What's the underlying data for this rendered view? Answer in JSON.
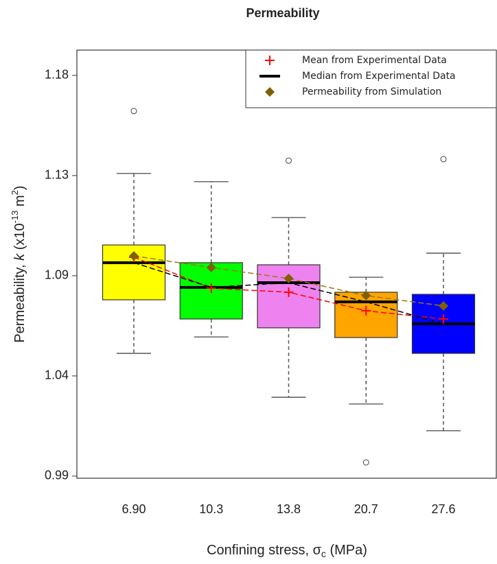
{
  "chart_data": {
    "type": "box",
    "title": "Permeability",
    "x_label": [
      "Confining stress, σ",
      "c",
      " (MPa)"
    ],
    "y_label": [
      "Permeability, ",
      "k",
      " (x10",
      "-13",
      " m",
      "2",
      ")"
    ],
    "categories": [
      "6.90",
      "10.3",
      "13.8",
      "20.7",
      "27.6"
    ],
    "box_colors": [
      "#ffff00",
      "#00ff00",
      "#ee82ee",
      "#ffa500",
      "#0000ff"
    ],
    "boxes": [
      {
        "whisker_low": 1.0482,
        "q1": 1.0736,
        "q3": 1.0996,
        "whisker_high": 1.1335,
        "outliers": [
          1.1631
        ]
      },
      {
        "whisker_low": 1.056,
        "q1": 1.0645,
        "q3": 1.0912,
        "whisker_high": 1.1296,
        "outliers": []
      },
      {
        "whisker_low": 1.0274,
        "q1": 1.0603,
        "q3": 1.0902,
        "whisker_high": 1.1126,
        "outliers": [
          1.1396
        ]
      },
      {
        "whisker_low": 1.0242,
        "q1": 1.0557,
        "q3": 1.0772,
        "whisker_high": 1.0843,
        "outliers": [
          0.9965
        ]
      },
      {
        "whisker_low": 1.0115,
        "q1": 1.0482,
        "q3": 1.0762,
        "whisker_high": 1.0957,
        "outliers": [
          1.1403
        ]
      }
    ],
    "series": [
      {
        "name": "Mean from Experimental Data",
        "marker": "plus",
        "color": "#ff0000",
        "values": [
          1.0938,
          1.0791,
          1.0772,
          1.0684,
          1.0645
        ]
      },
      {
        "name": "Median from Experimental Data",
        "marker": "median",
        "color": "#000000",
        "values": [
          1.0912,
          1.0795,
          1.0817,
          1.0726,
          1.0622
        ]
      },
      {
        "name": "Permeability from Simulation",
        "marker": "diamond",
        "color": "#7f6000",
        "values": [
          1.0944,
          1.0889,
          1.0837,
          1.0756,
          1.0707
        ]
      }
    ],
    "ylim": [
      0.989,
      1.192
    ],
    "yticks": [
      {
        "value": 0.99,
        "label": "0.99"
      },
      {
        "value": 1.0375,
        "label": "1.04"
      },
      {
        "value": 1.085,
        "label": "1.09"
      },
      {
        "value": 1.1325,
        "label": "1.13"
      },
      {
        "value": 1.18,
        "label": "1.18"
      }
    ],
    "legend": "top-right"
  }
}
